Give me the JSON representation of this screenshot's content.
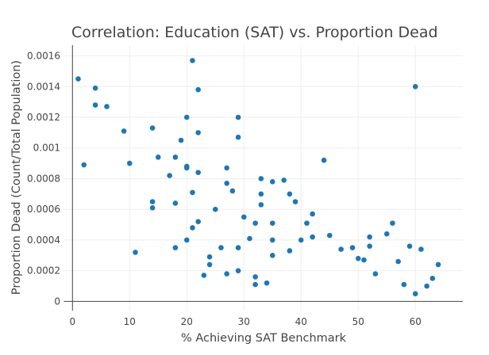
{
  "chart_data": {
    "type": "scatter",
    "title": "Correlation: Education (SAT) vs. Proportion Dead",
    "xlabel": "% Achieving SAT Benchmark",
    "ylabel": "Proportion Dead (Count/Total Population)",
    "xlim": [
      -1.5,
      68.3
    ],
    "ylim": [
      -6e-05,
      0.00167
    ],
    "xticks": [
      0,
      10,
      20,
      30,
      40,
      50,
      60
    ],
    "xtick_labels": [
      "0",
      "10",
      "20",
      "30",
      "40",
      "50",
      "60"
    ],
    "yticks": [
      0,
      0.0002,
      0.0004,
      0.0006,
      0.0008,
      0.001,
      0.0012,
      0.0014,
      0.0016
    ],
    "ytick_labels": [
      "0",
      "0.0002",
      "0.0004",
      "0.0006",
      "0.0008",
      "0.001",
      "0.0012",
      "0.0014",
      "0.0016"
    ],
    "grid": true,
    "marker_color": "#1f77b4",
    "points": [
      [
        1,
        0.00145
      ],
      [
        2,
        0.00089
      ],
      [
        4,
        0.00139
      ],
      [
        4,
        0.00128
      ],
      [
        6,
        0.00127
      ],
      [
        9,
        0.00111
      ],
      [
        10,
        0.0009
      ],
      [
        11,
        0.00032
      ],
      [
        14,
        0.00113
      ],
      [
        14,
        0.00065
      ],
      [
        14,
        0.00061
      ],
      [
        15,
        0.00094
      ],
      [
        17,
        0.00082
      ],
      [
        18,
        0.00094
      ],
      [
        18,
        0.00064
      ],
      [
        18,
        0.00035
      ],
      [
        19,
        0.00105
      ],
      [
        20,
        0.0012
      ],
      [
        20,
        0.00087
      ],
      [
        20,
        0.00088
      ],
      [
        20,
        0.0004
      ],
      [
        21,
        0.00157
      ],
      [
        21,
        0.00071
      ],
      [
        21,
        0.00048
      ],
      [
        22,
        0.00138
      ],
      [
        22,
        0.0011
      ],
      [
        22,
        0.00084
      ],
      [
        22,
        0.00052
      ],
      [
        23,
        0.00017
      ],
      [
        24,
        0.00029
      ],
      [
        24,
        0.00024
      ],
      [
        25,
        0.0006
      ],
      [
        26,
        0.00035
      ],
      [
        27,
        0.00087
      ],
      [
        27,
        0.00077
      ],
      [
        27,
        0.00018
      ],
      [
        28,
        0.00072
      ],
      [
        29,
        0.0012
      ],
      [
        29,
        0.00107
      ],
      [
        29,
        0.00035
      ],
      [
        29,
        0.0002
      ],
      [
        30,
        0.00055
      ],
      [
        31,
        0.00041
      ],
      [
        32,
        0.00051
      ],
      [
        32,
        0.00016
      ],
      [
        32,
        0.00011
      ],
      [
        33,
        0.0008
      ],
      [
        33,
        0.0007
      ],
      [
        33,
        0.00063
      ],
      [
        34,
        0.00012
      ],
      [
        35,
        0.00078
      ],
      [
        35,
        0.00051
      ],
      [
        35,
        0.0004
      ],
      [
        35,
        0.0003
      ],
      [
        37,
        0.00079
      ],
      [
        38,
        0.0007
      ],
      [
        38,
        0.00033
      ],
      [
        39,
        0.00065
      ],
      [
        40,
        0.0004
      ],
      [
        41,
        0.00051
      ],
      [
        42,
        0.00057
      ],
      [
        42,
        0.00042
      ],
      [
        44,
        0.00092
      ],
      [
        45,
        0.00043
      ],
      [
        47,
        0.00034
      ],
      [
        49,
        0.00035
      ],
      [
        50,
        0.00028
      ],
      [
        51,
        0.00027
      ],
      [
        52,
        0.00042
      ],
      [
        52,
        0.00036
      ],
      [
        53,
        0.00018
      ],
      [
        55,
        0.00044
      ],
      [
        56,
        0.00051
      ],
      [
        57,
        0.00026
      ],
      [
        58,
        0.00011
      ],
      [
        59,
        0.00036
      ],
      [
        60,
        0.0014
      ],
      [
        60,
        5e-05
      ],
      [
        61,
        0.00034
      ],
      [
        62,
        0.0001
      ],
      [
        63,
        0.00015
      ],
      [
        64,
        0.00024
      ]
    ]
  }
}
